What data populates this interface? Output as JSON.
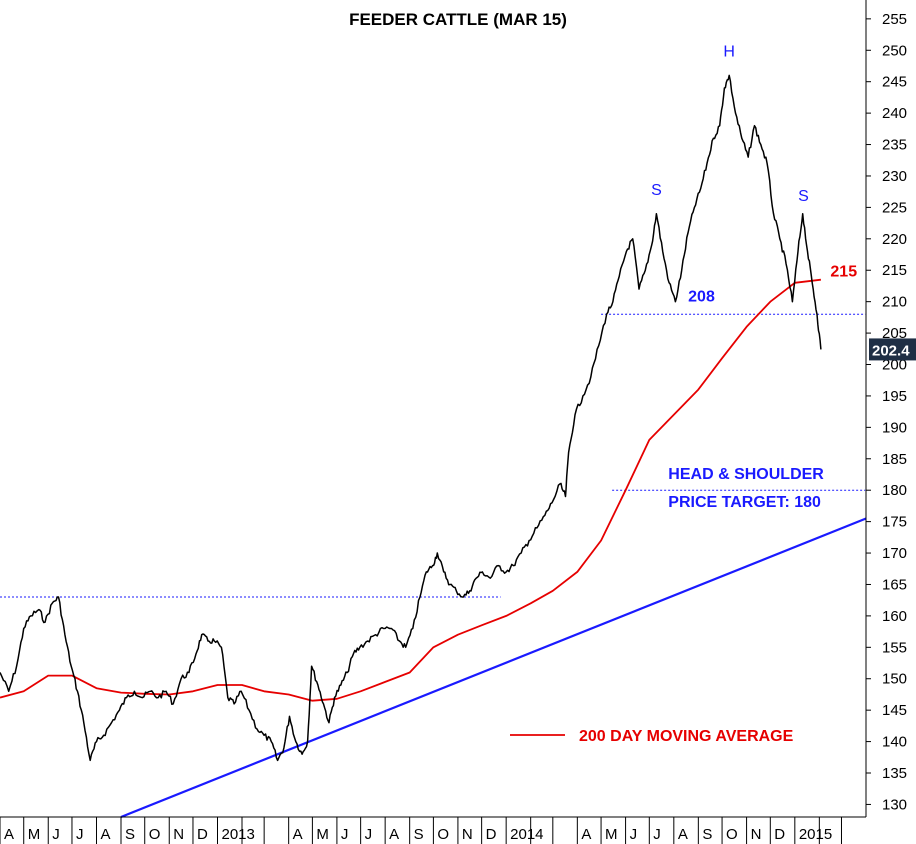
{
  "chart_data": {
    "type": "line",
    "title": "FEEDER CATTLE (MAR 15)",
    "xlabel": "",
    "ylabel": "",
    "ylim": [
      128,
      258
    ],
    "xlim": [
      "2012-04-01",
      "2015-04-01"
    ],
    "y_ticks": [
      130,
      135,
      140,
      145,
      150,
      155,
      160,
      165,
      170,
      175,
      180,
      185,
      190,
      195,
      200,
      205,
      210,
      215,
      220,
      225,
      230,
      235,
      240,
      245,
      250,
      255
    ],
    "x_ticks": [
      {
        "date": "2012-04-01",
        "label": "A"
      },
      {
        "date": "2012-05-01",
        "label": "M"
      },
      {
        "date": "2012-06-01",
        "label": "J"
      },
      {
        "date": "2012-07-01",
        "label": "J"
      },
      {
        "date": "2012-08-01",
        "label": "A"
      },
      {
        "date": "2012-09-01",
        "label": "S"
      },
      {
        "date": "2012-10-01",
        "label": "O"
      },
      {
        "date": "2012-11-01",
        "label": "N"
      },
      {
        "date": "2012-12-01",
        "label": "D"
      },
      {
        "date": "2013-01-01",
        "label": "2013"
      },
      {
        "date": "2013-02-01",
        "label": ""
      },
      {
        "date": "2013-03-01",
        "label": ""
      },
      {
        "date": "2013-04-01",
        "label": "A"
      },
      {
        "date": "2013-05-01",
        "label": "M"
      },
      {
        "date": "2013-06-01",
        "label": "J"
      },
      {
        "date": "2013-07-01",
        "label": "J"
      },
      {
        "date": "2013-08-01",
        "label": "A"
      },
      {
        "date": "2013-09-01",
        "label": "S"
      },
      {
        "date": "2013-10-01",
        "label": "O"
      },
      {
        "date": "2013-11-01",
        "label": "N"
      },
      {
        "date": "2013-12-01",
        "label": "D"
      },
      {
        "date": "2014-01-01",
        "label": "2014"
      },
      {
        "date": "2014-02-01",
        "label": ""
      },
      {
        "date": "2014-03-01",
        "label": ""
      },
      {
        "date": "2014-04-01",
        "label": "A"
      },
      {
        "date": "2014-05-01",
        "label": "M"
      },
      {
        "date": "2014-06-01",
        "label": "J"
      },
      {
        "date": "2014-07-01",
        "label": "J"
      },
      {
        "date": "2014-08-01",
        "label": "A"
      },
      {
        "date": "2014-09-01",
        "label": "S"
      },
      {
        "date": "2014-10-01",
        "label": "O"
      },
      {
        "date": "2014-11-01",
        "label": "N"
      },
      {
        "date": "2014-12-01",
        "label": "D"
      },
      {
        "date": "2015-01-01",
        "label": "2015"
      },
      {
        "date": "2015-02-01",
        "label": ""
      },
      {
        "date": "2015-03-01",
        "label": ""
      }
    ],
    "series": [
      {
        "style": "price",
        "color": "#000000",
        "points": [
          [
            "2012-04-01",
            151
          ],
          [
            "2012-04-12",
            148
          ],
          [
            "2012-04-22",
            152
          ],
          [
            "2012-05-01",
            158
          ],
          [
            "2012-05-10",
            160
          ],
          [
            "2012-05-20",
            161
          ],
          [
            "2012-05-28",
            159
          ],
          [
            "2012-06-06",
            162
          ],
          [
            "2012-06-14",
            163
          ],
          [
            "2012-06-22",
            157
          ],
          [
            "2012-06-30",
            152
          ],
          [
            "2012-07-08",
            148
          ],
          [
            "2012-07-16",
            143
          ],
          [
            "2012-07-24",
            137
          ],
          [
            "2012-08-01",
            140
          ],
          [
            "2012-08-10",
            141
          ],
          [
            "2012-08-20",
            143
          ],
          [
            "2012-08-30",
            145
          ],
          [
            "2012-09-08",
            147
          ],
          [
            "2012-09-18",
            148
          ],
          [
            "2012-09-28",
            147
          ],
          [
            "2012-10-08",
            148
          ],
          [
            "2012-10-18",
            147
          ],
          [
            "2012-10-28",
            148
          ],
          [
            "2012-11-06",
            146
          ],
          [
            "2012-11-16",
            150
          ],
          [
            "2012-11-26",
            151
          ],
          [
            "2012-12-05",
            154
          ],
          [
            "2012-12-12",
            157
          ],
          [
            "2012-12-20",
            156
          ],
          [
            "2012-12-28",
            156
          ],
          [
            "2013-01-06",
            155
          ],
          [
            "2013-01-14",
            147
          ],
          [
            "2013-01-22",
            146
          ],
          [
            "2013-01-31",
            148
          ],
          [
            "2013-02-10",
            145
          ],
          [
            "2013-02-20",
            142
          ],
          [
            "2013-03-01",
            141
          ],
          [
            "2013-03-10",
            140
          ],
          [
            "2013-03-18",
            137
          ],
          [
            "2013-03-26",
            139
          ],
          [
            "2013-04-02",
            144
          ],
          [
            "2013-04-10",
            140
          ],
          [
            "2013-04-18",
            138
          ],
          [
            "2013-04-25",
            140
          ],
          [
            "2013-04-30",
            152
          ],
          [
            "2013-05-08",
            149
          ],
          [
            "2013-05-15",
            146
          ],
          [
            "2013-05-22",
            143
          ],
          [
            "2013-05-29",
            147
          ],
          [
            "2013-06-06",
            149
          ],
          [
            "2013-06-14",
            151
          ],
          [
            "2013-06-22",
            154
          ],
          [
            "2013-06-30",
            155
          ],
          [
            "2013-07-10",
            156
          ],
          [
            "2013-07-20",
            157
          ],
          [
            "2013-07-30",
            158
          ],
          [
            "2013-08-09",
            158
          ],
          [
            "2013-08-19",
            156
          ],
          [
            "2013-08-27",
            155
          ],
          [
            "2013-09-05",
            158
          ],
          [
            "2013-09-14",
            163
          ],
          [
            "2013-09-22",
            167
          ],
          [
            "2013-09-30",
            168
          ],
          [
            "2013-10-06",
            170
          ],
          [
            "2013-10-14",
            167
          ],
          [
            "2013-10-22",
            165
          ],
          [
            "2013-10-30",
            164
          ],
          [
            "2013-11-08",
            163
          ],
          [
            "2013-11-16",
            164
          ],
          [
            "2013-11-24",
            166
          ],
          [
            "2013-12-02",
            167
          ],
          [
            "2013-12-12",
            166
          ],
          [
            "2013-12-22",
            168
          ],
          [
            "2014-01-01",
            167
          ],
          [
            "2014-01-10",
            168
          ],
          [
            "2014-01-20",
            170
          ],
          [
            "2014-01-30",
            172
          ],
          [
            "2014-02-09",
            174
          ],
          [
            "2014-02-19",
            176
          ],
          [
            "2014-02-28",
            178
          ],
          [
            "2014-03-10",
            181
          ],
          [
            "2014-03-17",
            179
          ],
          [
            "2014-03-21",
            186
          ],
          [
            "2014-03-29",
            192
          ],
          [
            "2014-04-08",
            195
          ],
          [
            "2014-04-18",
            198
          ],
          [
            "2014-04-28",
            203
          ],
          [
            "2014-05-08",
            208
          ],
          [
            "2014-05-16",
            210
          ],
          [
            "2014-05-24",
            214
          ],
          [
            "2014-06-02",
            218
          ],
          [
            "2014-06-10",
            220
          ],
          [
            "2014-06-18",
            212
          ],
          [
            "2014-06-26",
            215
          ],
          [
            "2014-07-04",
            219
          ],
          [
            "2014-07-10",
            224
          ],
          [
            "2014-07-18",
            218
          ],
          [
            "2014-07-26",
            213
          ],
          [
            "2014-08-03",
            210
          ],
          [
            "2014-08-11",
            215
          ],
          [
            "2014-08-19",
            221
          ],
          [
            "2014-08-27",
            225
          ],
          [
            "2014-09-04",
            228
          ],
          [
            "2014-09-12",
            232
          ],
          [
            "2014-09-20",
            236
          ],
          [
            "2014-09-28",
            238
          ],
          [
            "2014-10-04",
            244
          ],
          [
            "2014-10-10",
            246
          ],
          [
            "2014-10-18",
            240
          ],
          [
            "2014-10-26",
            236
          ],
          [
            "2014-11-03",
            233
          ],
          [
            "2014-11-11",
            238
          ],
          [
            "2014-11-19",
            235
          ],
          [
            "2014-11-27",
            232
          ],
          [
            "2014-12-05",
            224
          ],
          [
            "2014-12-13",
            220
          ],
          [
            "2014-12-21",
            216
          ],
          [
            "2014-12-29",
            210
          ],
          [
            "2015-01-05",
            218
          ],
          [
            "2015-01-11",
            224
          ],
          [
            "2015-01-17",
            218
          ],
          [
            "2015-01-23",
            213
          ],
          [
            "2015-01-29",
            208
          ],
          [
            "2015-02-03",
            202.4
          ]
        ]
      },
      {
        "name": "200 DAY MOVING AVERAGE",
        "style": "moving-average",
        "color": "#e60000",
        "points": [
          [
            "2012-04-01",
            147
          ],
          [
            "2012-05-01",
            148
          ],
          [
            "2012-06-01",
            150.5
          ],
          [
            "2012-07-01",
            150.5
          ],
          [
            "2012-08-01",
            148.5
          ],
          [
            "2012-09-01",
            147.8
          ],
          [
            "2012-10-01",
            147.6
          ],
          [
            "2012-11-01",
            147.5
          ],
          [
            "2012-12-01",
            148
          ],
          [
            "2013-01-01",
            149
          ],
          [
            "2013-02-01",
            149
          ],
          [
            "2013-03-01",
            148
          ],
          [
            "2013-04-01",
            147.5
          ],
          [
            "2013-05-01",
            146.5
          ],
          [
            "2013-06-01",
            146.8
          ],
          [
            "2013-07-01",
            148
          ],
          [
            "2013-08-01",
            149.5
          ],
          [
            "2013-09-01",
            151
          ],
          [
            "2013-10-01",
            155
          ],
          [
            "2013-11-01",
            157
          ],
          [
            "2013-12-01",
            158.5
          ],
          [
            "2014-01-01",
            160
          ],
          [
            "2014-02-01",
            162
          ],
          [
            "2014-03-01",
            164
          ],
          [
            "2014-04-01",
            167
          ],
          [
            "2014-05-01",
            172
          ],
          [
            "2014-06-01",
            180
          ],
          [
            "2014-07-01",
            188
          ],
          [
            "2014-08-01",
            192
          ],
          [
            "2014-09-01",
            196
          ],
          [
            "2014-10-01",
            201
          ],
          [
            "2014-11-01",
            206
          ],
          [
            "2014-12-01",
            210
          ],
          [
            "2015-01-01",
            213
          ],
          [
            "2015-02-03",
            213.5
          ]
        ]
      }
    ],
    "annotations": [
      {
        "text": "S",
        "date": "2014-07-10",
        "y": 227
      },
      {
        "text": "H",
        "date": "2014-10-10",
        "y": 249
      },
      {
        "text": "S",
        "date": "2015-01-12",
        "y": 226
      },
      {
        "text": "208",
        "date": "2014-09-05",
        "y": 210
      },
      {
        "text": "215",
        "date": "2015-02-15",
        "y": 214
      },
      {
        "text": "HEAD & SHOULDER",
        "date": "2014-07-25",
        "y": 181.8
      },
      {
        "text": "PRICE TARGET: 180",
        "date": "2014-07-25",
        "y": 177.3
      }
    ],
    "reference_lines": [
      {
        "y": 163,
        "from": "2012-04-01",
        "to": "2013-12-25"
      },
      {
        "y": 208,
        "from": "2014-05-01",
        "to": "2015-03-31"
      },
      {
        "y": 180,
        "from": "2014-05-15",
        "to": "2015-03-31"
      }
    ],
    "trendline": {
      "color": "#1a1aff",
      "from": [
        "2012-09-01",
        128
      ],
      "to": [
        "2015-04-01",
        175.5
      ]
    },
    "legend": {
      "label": "200 DAY MOVING AVERAGE",
      "placement": "bottom-right"
    },
    "last_price": "202.4",
    "grid": false
  }
}
